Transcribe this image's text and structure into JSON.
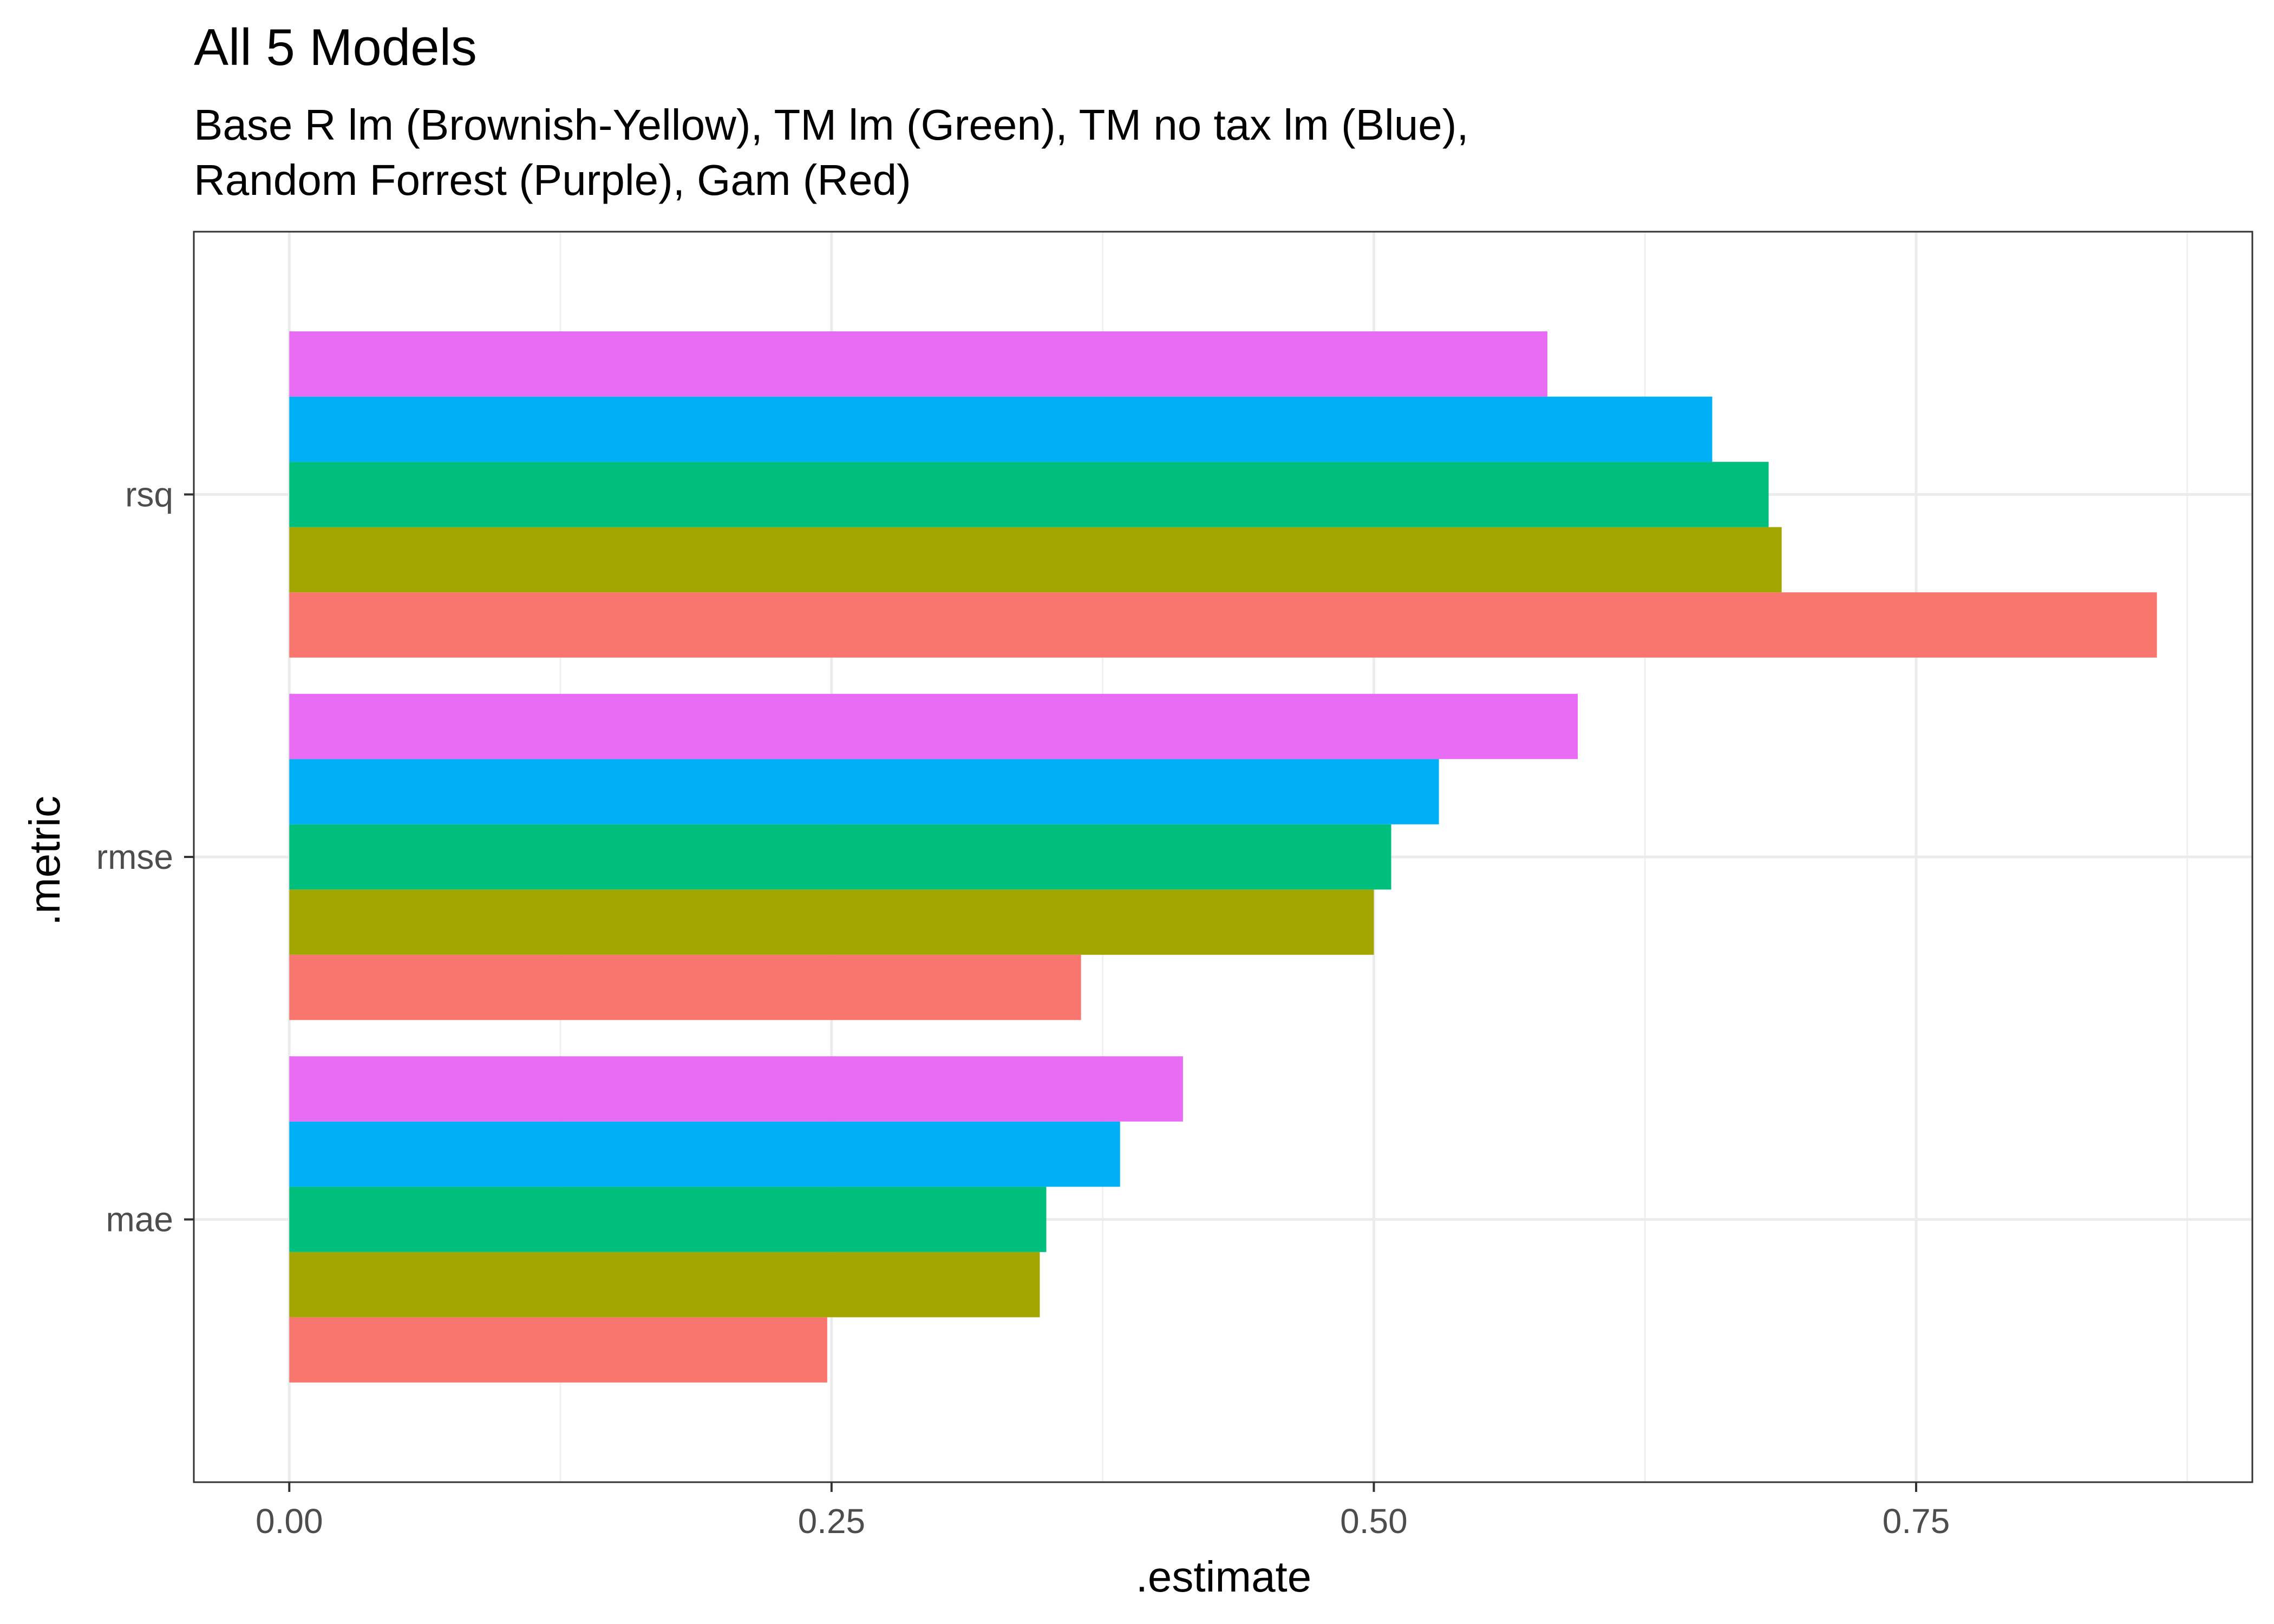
{
  "chart_data": {
    "type": "bar",
    "orientation": "horizontal",
    "title": "All 5 Models",
    "subtitle_lines": [
      "Base R lm (Brownish-Yellow), TM lm (Green), TM no tax lm (Blue),",
      "Random Forrest (Purple), Gam (Red)"
    ],
    "xlabel": ".estimate",
    "ylabel": ".metric",
    "categories": [
      "rsq",
      "rmse",
      "mae"
    ],
    "xlim": [
      -0.044,
      0.905
    ],
    "xticks": [
      {
        "value": 0.0,
        "label": "0.00"
      },
      {
        "value": 0.25,
        "label": "0.25"
      },
      {
        "value": 0.5,
        "label": "0.50"
      },
      {
        "value": 0.75,
        "label": "0.75"
      }
    ],
    "xminor": [
      0.125,
      0.375,
      0.625,
      0.875
    ],
    "grid": true,
    "legend": "none",
    "series": [
      {
        "color": "#F8766D",
        "values": [
          0.861,
          0.365,
          0.248
        ]
      },
      {
        "color": "#A3A500",
        "values": [
          0.688,
          0.5,
          0.346
        ]
      },
      {
        "color": "#00BF7D",
        "values": [
          0.682,
          0.508,
          0.349
        ]
      },
      {
        "color": "#00B0F6",
        "values": [
          0.656,
          0.53,
          0.383
        ]
      },
      {
        "color": "#E76BF3",
        "values": [
          0.58,
          0.594,
          0.412
        ]
      }
    ]
  }
}
